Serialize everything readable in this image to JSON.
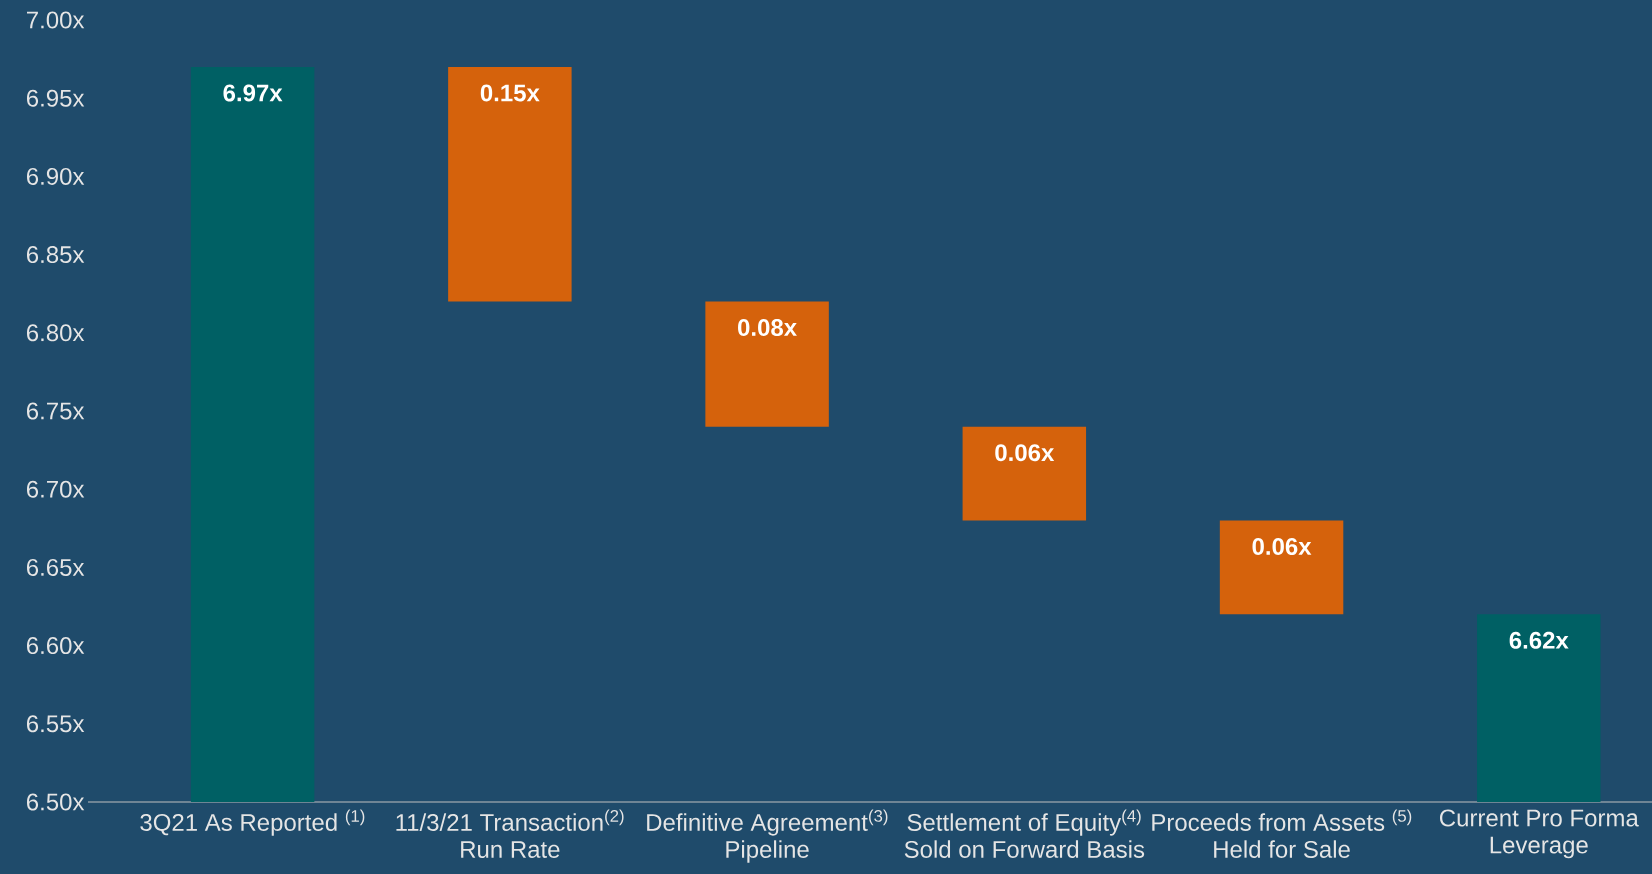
{
  "chart_data": {
    "type": "bar",
    "categories": [
      "3Q21 As Reported $^{(1)}$",
      "11/3/21 Transaction$^{(2)}$ Run Rate",
      "Definitive Agreement$^{(3)}$ Pipeline",
      "Settlement of Equity$^{(4)}$ Sold on Forward Basis",
      "Proceeds from Assets $^{(5)}$ Held for Sale",
      "Current Pro Forma Leverage"
    ],
    "base": [
      6.5,
      6.82,
      6.74,
      6.68,
      6.62,
      6.5
    ],
    "values": [
      0.47,
      0.15,
      0.08,
      0.06,
      0.06,
      0.12
    ],
    "colors": [
      "#006064",
      "#d5620c",
      "#d5620c",
      "#d5620c",
      "#d5620c",
      "#006064"
    ],
    "value_labels": [
      "6.97x",
      "0.15x",
      "0.08x",
      "0.06x",
      "0.06x",
      "6.62x"
    ],
    "ylim": [
      6.5,
      7.0
    ],
    "yticks": [
      {
        "value": 6.5,
        "label": "6.50x"
      },
      {
        "value": 6.55,
        "label": "6.55x"
      },
      {
        "value": 6.6,
        "label": "6.60x"
      },
      {
        "value": 6.65,
        "label": "6.65x"
      },
      {
        "value": 6.7,
        "label": "6.70x"
      },
      {
        "value": 6.75,
        "label": "6.75x"
      },
      {
        "value": 6.8,
        "label": "6.80x"
      },
      {
        "value": 6.85,
        "label": "6.85x"
      },
      {
        "value": 6.9,
        "label": "6.90x"
      },
      {
        "value": 6.95,
        "label": "6.95x"
      },
      {
        "value": 7.0,
        "label": "7.00x"
      }
    ]
  }
}
